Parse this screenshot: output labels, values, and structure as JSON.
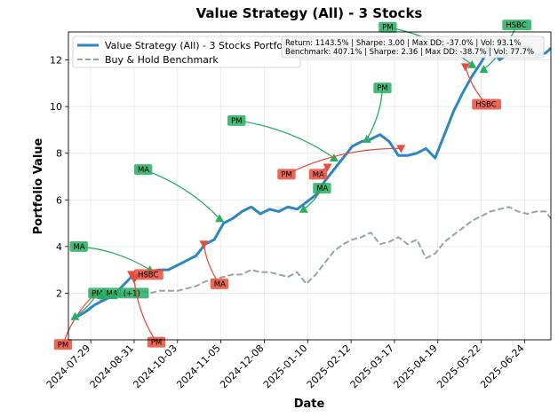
{
  "chart_data": {
    "type": "line",
    "title": "Value Strategy (All) - 3 Stocks",
    "xlabel": "Date",
    "ylabel": "Portfolio Value",
    "ylim": [
      0,
      13.2
    ],
    "yticks": [
      2,
      4,
      6,
      8,
      10,
      12
    ],
    "xlim": [
      "2024-07-12",
      "2025-07-14"
    ],
    "xticks": [
      "2024-07-29",
      "2024-08-31",
      "2024-10-03",
      "2024-11-05",
      "2024-12-08",
      "2025-01-10",
      "2025-02-12",
      "2025-03-17",
      "2025-04-19",
      "2025-05-22",
      "2025-06-24"
    ],
    "grid": true,
    "legend_position": "upper-left",
    "colors": {
      "strategy": "#2e86c1",
      "benchmark": "#95a5a6",
      "buy": "#27ae60",
      "sell": "#e74c3c"
    },
    "series": [
      {
        "name": "Value Strategy (All) - 3 Stocks Portfolio",
        "style": "solid",
        "x": [
          "2024-07-19",
          "2024-07-25",
          "2024-08-01",
          "2024-08-08",
          "2024-08-15",
          "2024-08-22",
          "2024-08-29",
          "2024-09-05",
          "2024-09-12",
          "2024-09-19",
          "2024-09-26",
          "2024-10-03",
          "2024-10-10",
          "2024-10-17",
          "2024-10-24",
          "2024-10-31",
          "2024-11-07",
          "2024-11-14",
          "2024-11-21",
          "2024-11-28",
          "2024-12-05",
          "2024-12-12",
          "2024-12-19",
          "2024-12-26",
          "2025-01-02",
          "2025-01-09",
          "2025-01-16",
          "2025-01-23",
          "2025-01-30",
          "2025-02-06",
          "2025-02-13",
          "2025-02-20",
          "2025-02-27",
          "2025-03-06",
          "2025-03-13",
          "2025-03-20",
          "2025-03-27",
          "2025-04-03",
          "2025-04-10",
          "2025-04-17",
          "2025-04-24",
          "2025-05-01",
          "2025-05-08",
          "2025-05-15",
          "2025-05-22",
          "2025-05-29",
          "2025-06-05",
          "2025-06-12",
          "2025-06-19",
          "2025-06-26",
          "2025-07-03",
          "2025-07-10",
          "2025-07-14"
        ],
        "values": [
          1.0,
          1.2,
          1.5,
          1.7,
          1.9,
          2.3,
          2.7,
          2.8,
          2.9,
          3.0,
          3.0,
          3.2,
          3.4,
          3.6,
          4.1,
          4.3,
          5.0,
          5.2,
          5.5,
          5.7,
          5.4,
          5.6,
          5.5,
          5.7,
          5.6,
          5.9,
          6.2,
          6.8,
          7.3,
          7.8,
          8.3,
          8.5,
          8.6,
          8.8,
          8.5,
          7.9,
          7.9,
          8.0,
          8.2,
          7.8,
          8.8,
          9.8,
          10.6,
          11.3,
          11.9,
          12.6,
          12.0,
          12.3,
          12.5,
          12.6,
          12.2,
          12.3,
          12.5
        ]
      },
      {
        "name": "Buy & Hold Benchmark",
        "style": "dashed",
        "x": [
          "2024-07-19",
          "2024-07-25",
          "2024-08-01",
          "2024-08-08",
          "2024-08-15",
          "2024-08-22",
          "2024-08-29",
          "2024-09-05",
          "2024-09-12",
          "2024-09-19",
          "2024-09-26",
          "2024-10-03",
          "2024-10-10",
          "2024-10-17",
          "2024-10-24",
          "2024-10-31",
          "2024-11-07",
          "2024-11-14",
          "2024-11-21",
          "2024-11-28",
          "2024-12-05",
          "2024-12-12",
          "2024-12-19",
          "2024-12-26",
          "2025-01-02",
          "2025-01-09",
          "2025-01-16",
          "2025-01-23",
          "2025-01-30",
          "2025-02-06",
          "2025-02-13",
          "2025-02-20",
          "2025-02-27",
          "2025-03-06",
          "2025-03-13",
          "2025-03-20",
          "2025-03-27",
          "2025-04-03",
          "2025-04-10",
          "2025-04-17",
          "2025-04-24",
          "2025-05-01",
          "2025-05-08",
          "2025-05-15",
          "2025-05-22",
          "2025-05-29",
          "2025-06-05",
          "2025-06-12",
          "2025-06-19",
          "2025-06-26",
          "2025-07-03",
          "2025-07-10",
          "2025-07-14"
        ],
        "values": [
          1.0,
          1.2,
          1.5,
          1.8,
          1.9,
          2.0,
          2.1,
          2.1,
          2.0,
          2.1,
          2.1,
          2.1,
          2.2,
          2.3,
          2.5,
          2.6,
          2.7,
          2.8,
          2.8,
          3.0,
          2.9,
          2.9,
          2.8,
          2.7,
          2.9,
          2.4,
          2.8,
          3.3,
          3.8,
          4.1,
          4.3,
          4.4,
          4.6,
          4.1,
          4.2,
          4.4,
          4.1,
          4.3,
          3.5,
          3.7,
          4.2,
          4.5,
          4.8,
          5.1,
          5.3,
          5.5,
          5.6,
          5.7,
          5.5,
          5.4,
          5.5,
          5.5,
          5.2
        ]
      }
    ],
    "stats_box": [
      "Return: 1143.5% | Sharpe: 3.00 | Max DD: -37.0% | Vol: 93.1%",
      "Benchmark: 407.1% | Sharpe: 2.36 | Max DD: -38.7% | Vol: 77.7%"
    ],
    "annotations": [
      {
        "label": "PM",
        "side": "sell",
        "date": "2024-07-31",
        "value": 1.9,
        "label_date": "2024-07-01",
        "label_value": -0.2
      },
      {
        "label": "PM",
        "side": "buy",
        "date": "2024-07-17",
        "value": 1.0,
        "label_date": "2024-07-27",
        "label_value": 2.0
      },
      {
        "label": "MA",
        "side": "buy",
        "date": "2024-08-06",
        "value": 1.9,
        "label_date": "2024-08-07",
        "label_value": 2.0
      },
      {
        "label": "(+1)",
        "side": "buy",
        "date": "2024-08-15",
        "value": 1.9,
        "label_date": "2024-08-20",
        "label_value": 2.0
      },
      {
        "label": "MA",
        "side": "buy",
        "date": "2024-09-12",
        "value": 3.0,
        "label_date": "2024-07-13",
        "label_value": 4.0
      },
      {
        "label": "HSBC",
        "side": "sell",
        "date": "2024-08-29",
        "value": 2.8,
        "label_date": "2024-08-31",
        "label_value": 2.8
      },
      {
        "label": "PM",
        "side": "sell",
        "date": "2024-08-31",
        "value": 2.6,
        "label_date": "2024-09-10",
        "label_value": -0.1
      },
      {
        "label": "MA",
        "side": "buy",
        "date": "2024-11-04",
        "value": 5.2,
        "label_date": "2024-08-31",
        "label_value": 7.3
      },
      {
        "label": "MA",
        "side": "sell",
        "date": "2024-10-23",
        "value": 4.1,
        "label_date": "2024-10-28",
        "label_value": 2.4
      },
      {
        "label": "PM",
        "side": "buy",
        "date": "2025-01-30",
        "value": 7.8,
        "label_date": "2024-11-10",
        "label_value": 9.4
      },
      {
        "label": "PM",
        "side": "sell",
        "date": "2025-03-22",
        "value": 8.2,
        "label_date": "2024-12-18",
        "label_value": 7.1
      },
      {
        "label": "MA",
        "side": "sell",
        "date": "2025-01-25",
        "value": 7.4,
        "label_date": "2025-01-11",
        "label_value": 7.1
      },
      {
        "label": "MA",
        "side": "buy",
        "date": "2025-01-07",
        "value": 5.6,
        "label_date": "2025-01-14",
        "label_value": 6.5
      },
      {
        "label": "PM",
        "side": "buy",
        "date": "2025-02-24",
        "value": 8.6,
        "label_date": "2025-03-01",
        "label_value": 10.8
      },
      {
        "label": "PM",
        "side": "buy",
        "date": "2025-05-15",
        "value": 11.8,
        "label_date": "2025-03-05",
        "label_value": 13.4
      },
      {
        "label": "HSBC",
        "side": "sell",
        "date": "2025-05-10",
        "value": 11.7,
        "label_date": "2025-05-15",
        "label_value": 10.1
      },
      {
        "label": "HSBC",
        "side": "buy",
        "date": "2025-05-24",
        "value": 11.6,
        "label_date": "2025-06-07",
        "label_value": 13.5
      }
    ]
  }
}
